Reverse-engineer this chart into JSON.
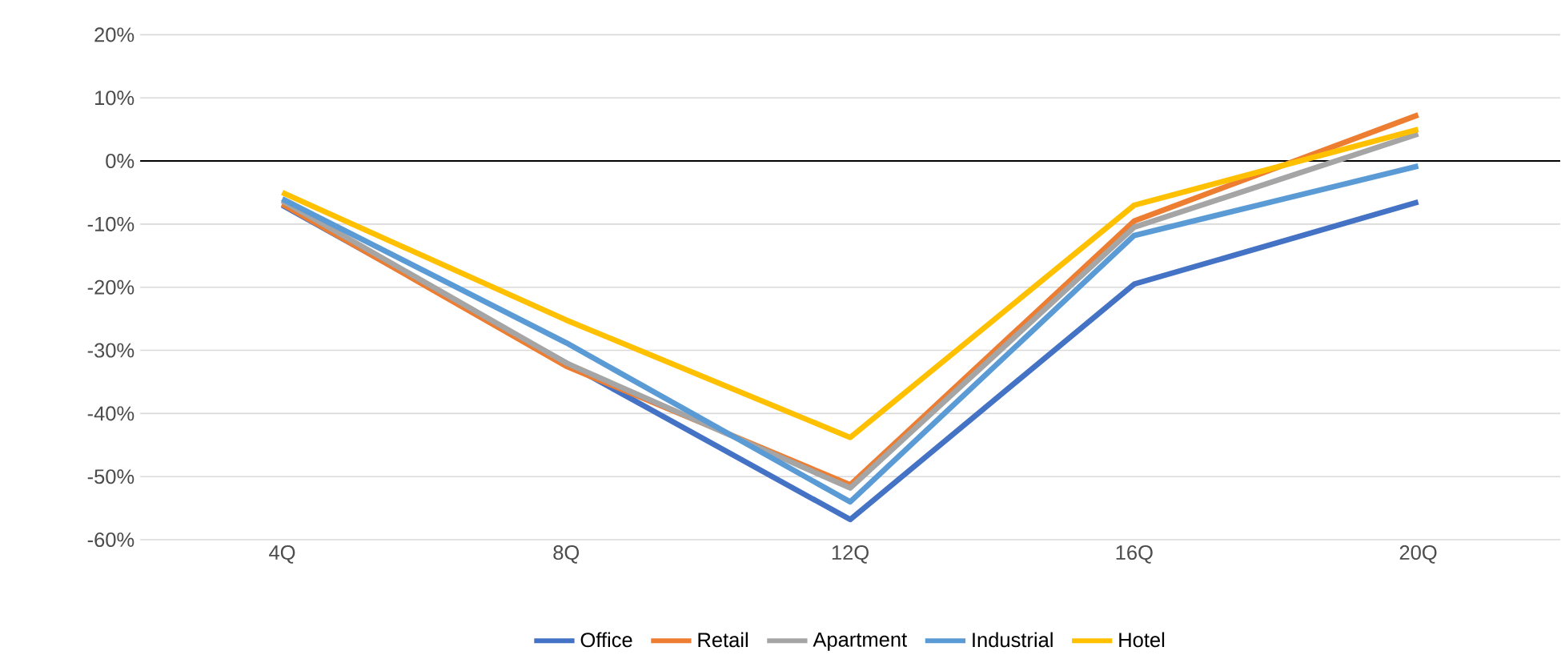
{
  "chart_data": {
    "type": "line",
    "categories": [
      "4Q",
      "8Q",
      "12Q",
      "16Q",
      "20Q"
    ],
    "series": [
      {
        "name": "Office",
        "color": "#4472c4",
        "values": [
          -7,
          -32,
          -56.8,
          -19.5,
          -6.5
        ]
      },
      {
        "name": "Retail",
        "color": "#ed7d31",
        "values": [
          -6.8,
          -32.5,
          -51.3,
          -9.5,
          7.3
        ]
      },
      {
        "name": "Apartment",
        "color": "#a5a5a5",
        "values": [
          -6.3,
          -32,
          -51.8,
          -10.5,
          4.3
        ]
      },
      {
        "name": "Industrial",
        "color": "#5b9bd5",
        "values": [
          -6,
          -28.8,
          -54,
          -11.8,
          -0.8
        ]
      },
      {
        "name": "Hotel",
        "color": "#ffc000",
        "values": [
          -5,
          -25.2,
          -43.8,
          -7,
          5
        ]
      }
    ],
    "ylim": [
      -60,
      20
    ],
    "yticks": [
      {
        "value": -60,
        "label": "-60%"
      },
      {
        "value": -50,
        "label": "-50%"
      },
      {
        "value": -40,
        "label": "-40%"
      },
      {
        "value": -30,
        "label": "-30%"
      },
      {
        "value": -20,
        "label": "-20%"
      },
      {
        "value": -10,
        "label": "-10%"
      },
      {
        "value": 0,
        "label": "0%"
      },
      {
        "value": 10,
        "label": "10%"
      },
      {
        "value": 20,
        "label": "20%"
      }
    ],
    "ref_lines": [
      {
        "axis": "y",
        "value": 0,
        "color": "#000000"
      }
    ],
    "grid": "y",
    "legend": "bottom",
    "marker": "none",
    "line_style": "solid"
  }
}
